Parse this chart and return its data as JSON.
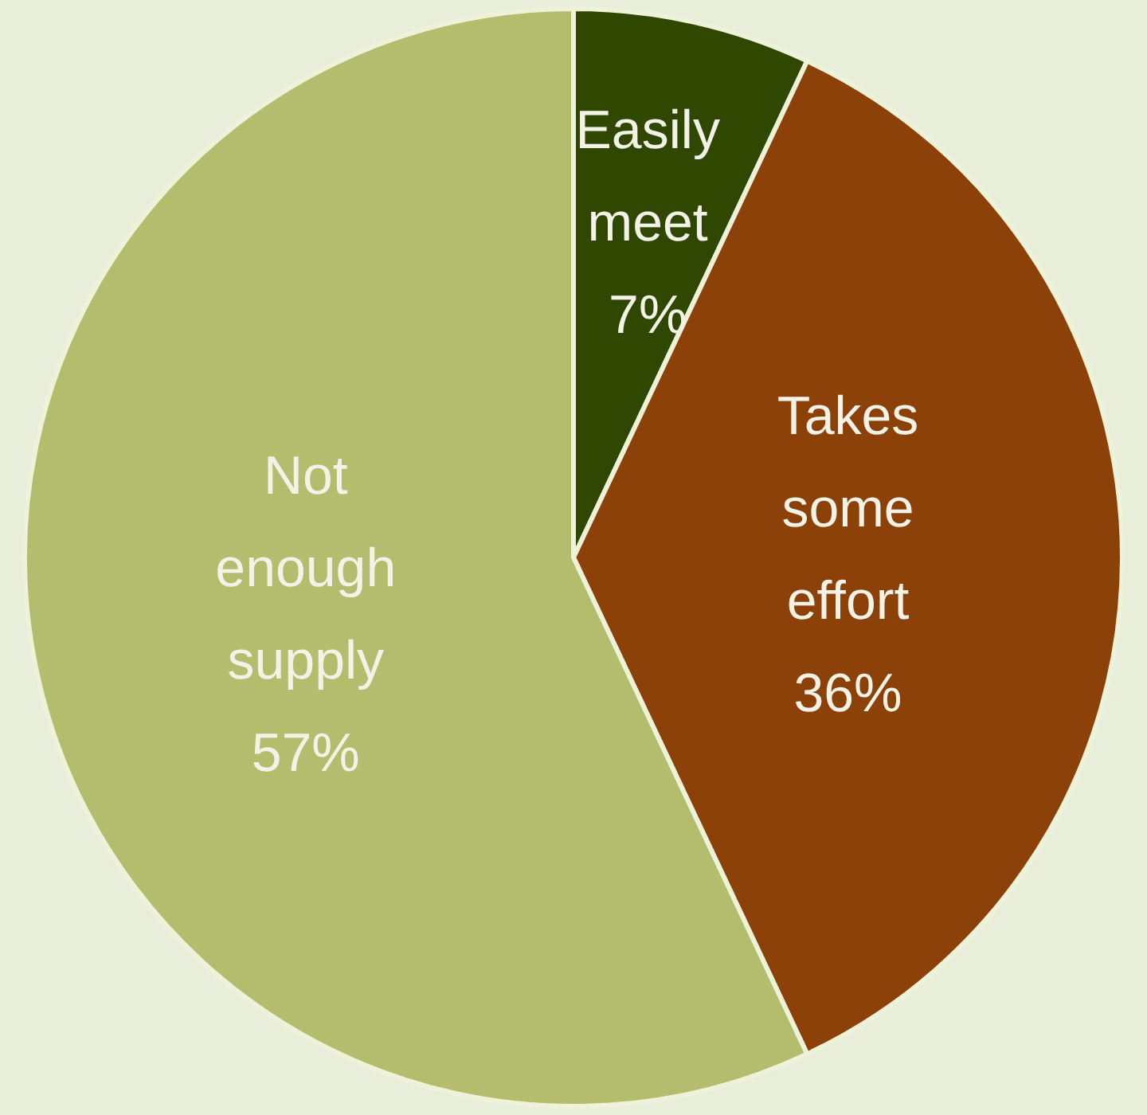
{
  "chart_data": {
    "type": "pie",
    "categories": [
      "Easily meet",
      "Takes some effort",
      "Not enough supply"
    ],
    "values": [
      7,
      36,
      57
    ],
    "colors": [
      "#2f4700",
      "#8b4107",
      "#b4bd6d"
    ],
    "value_labels": [
      "7%",
      "36%",
      "57%"
    ],
    "legend": false
  }
}
